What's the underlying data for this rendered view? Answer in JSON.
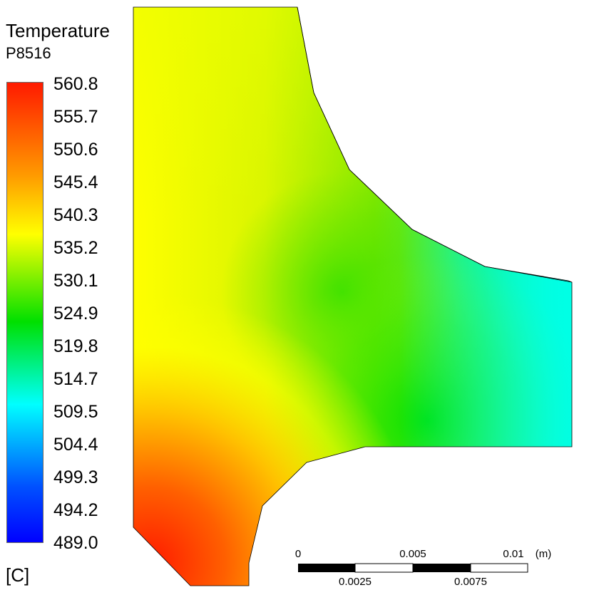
{
  "legend": {
    "title": "Temperature",
    "subtitle": "P8516",
    "unit": "[C]",
    "ticks": [
      "560.8",
      "555.7",
      "550.6",
      "545.4",
      "540.3",
      "535.2",
      "530.1",
      "524.9",
      "519.8",
      "514.7",
      "509.5",
      "504.4",
      "499.3",
      "494.2",
      "489.0"
    ],
    "colors": {
      "max": "#ff1a00",
      "orange": "#ff9900",
      "yellow": "#ffff00",
      "green": "#00e000",
      "cyan": "#00ffff",
      "blue": "#0050ff",
      "min": "#0000ff"
    }
  },
  "scale_bar": {
    "top_labels": [
      "0",
      "0.005",
      "0.01"
    ],
    "unit": "(m)",
    "bottom_labels": [
      "0.0025",
      "0.0075"
    ]
  }
}
